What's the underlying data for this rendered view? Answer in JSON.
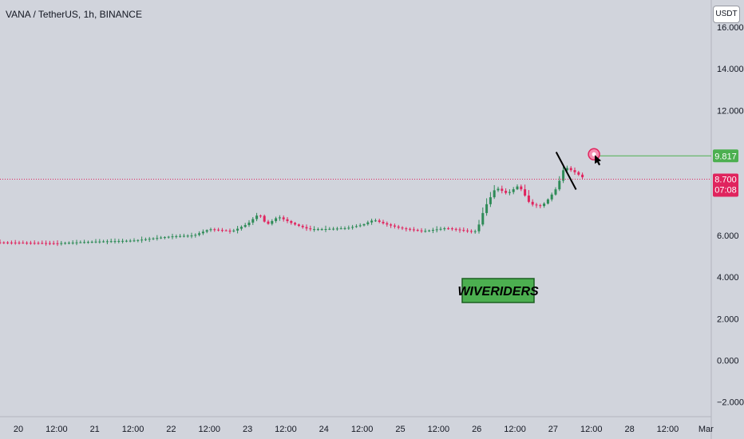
{
  "header": {
    "symbol_title": "VANA / TetherUS, 1h, BINANCE",
    "currency_button": "USDT"
  },
  "watermark": {
    "text": "WIVERIDERS"
  },
  "colors": {
    "background": "#d1d4dc",
    "up": "#2e8b57",
    "down": "#e0245e",
    "target_line": "#4caf50",
    "current_price_line": "#e0245e",
    "watermark_bg": "#4caf50"
  },
  "chart_data": {
    "type": "candlestick",
    "title": "",
    "xlabel": "",
    "ylabel": "",
    "ylim": [
      -2.7,
      17.3
    ],
    "y_ticks": [
      "16.000",
      "14.000",
      "12.000",
      "6.000",
      "4.000",
      "2.000",
      "0.000",
      "−2.000"
    ],
    "x_ticks": [
      "20",
      "12:00",
      "21",
      "12:00",
      "22",
      "12:00",
      "23",
      "12:00",
      "24",
      "12:00",
      "25",
      "12:00",
      "26",
      "12:00",
      "27",
      "12:00",
      "28",
      "12:00",
      "Mar"
    ],
    "price_path": [
      [
        0,
        5.65
      ],
      [
        0.5,
        5.62
      ],
      [
        1,
        5.7
      ],
      [
        1.5,
        5.75
      ],
      [
        2,
        5.95
      ],
      [
        2.3,
        6.0
      ],
      [
        2.5,
        6.3
      ],
      [
        2.8,
        6.2
      ],
      [
        3.0,
        6.55
      ],
      [
        3.15,
        7.05
      ],
      [
        3.25,
        6.5
      ],
      [
        3.4,
        6.9
      ],
      [
        3.6,
        6.55
      ],
      [
        3.8,
        6.3
      ],
      [
        4.0,
        6.3
      ],
      [
        4.3,
        6.35
      ],
      [
        4.5,
        6.5
      ],
      [
        4.65,
        6.75
      ],
      [
        4.8,
        6.55
      ],
      [
        5.0,
        6.35
      ],
      [
        5.3,
        6.2
      ],
      [
        5.6,
        6.35
      ],
      [
        5.9,
        6.2
      ],
      [
        6.0,
        6.2
      ],
      [
        6.1,
        7.3
      ],
      [
        6.25,
        8.3
      ],
      [
        6.4,
        8.0
      ],
      [
        6.55,
        8.4
      ],
      [
        6.7,
        7.5
      ],
      [
        6.85,
        7.4
      ],
      [
        6.95,
        7.8
      ],
      [
        7.05,
        8.3
      ],
      [
        7.15,
        9.3
      ],
      [
        7.3,
        9.0
      ],
      [
        7.42,
        8.7
      ]
    ],
    "last_price": "8.700",
    "countdown": "07:08",
    "target_price": "9.817",
    "annotations": [
      "downward trendline",
      "target marker"
    ]
  }
}
